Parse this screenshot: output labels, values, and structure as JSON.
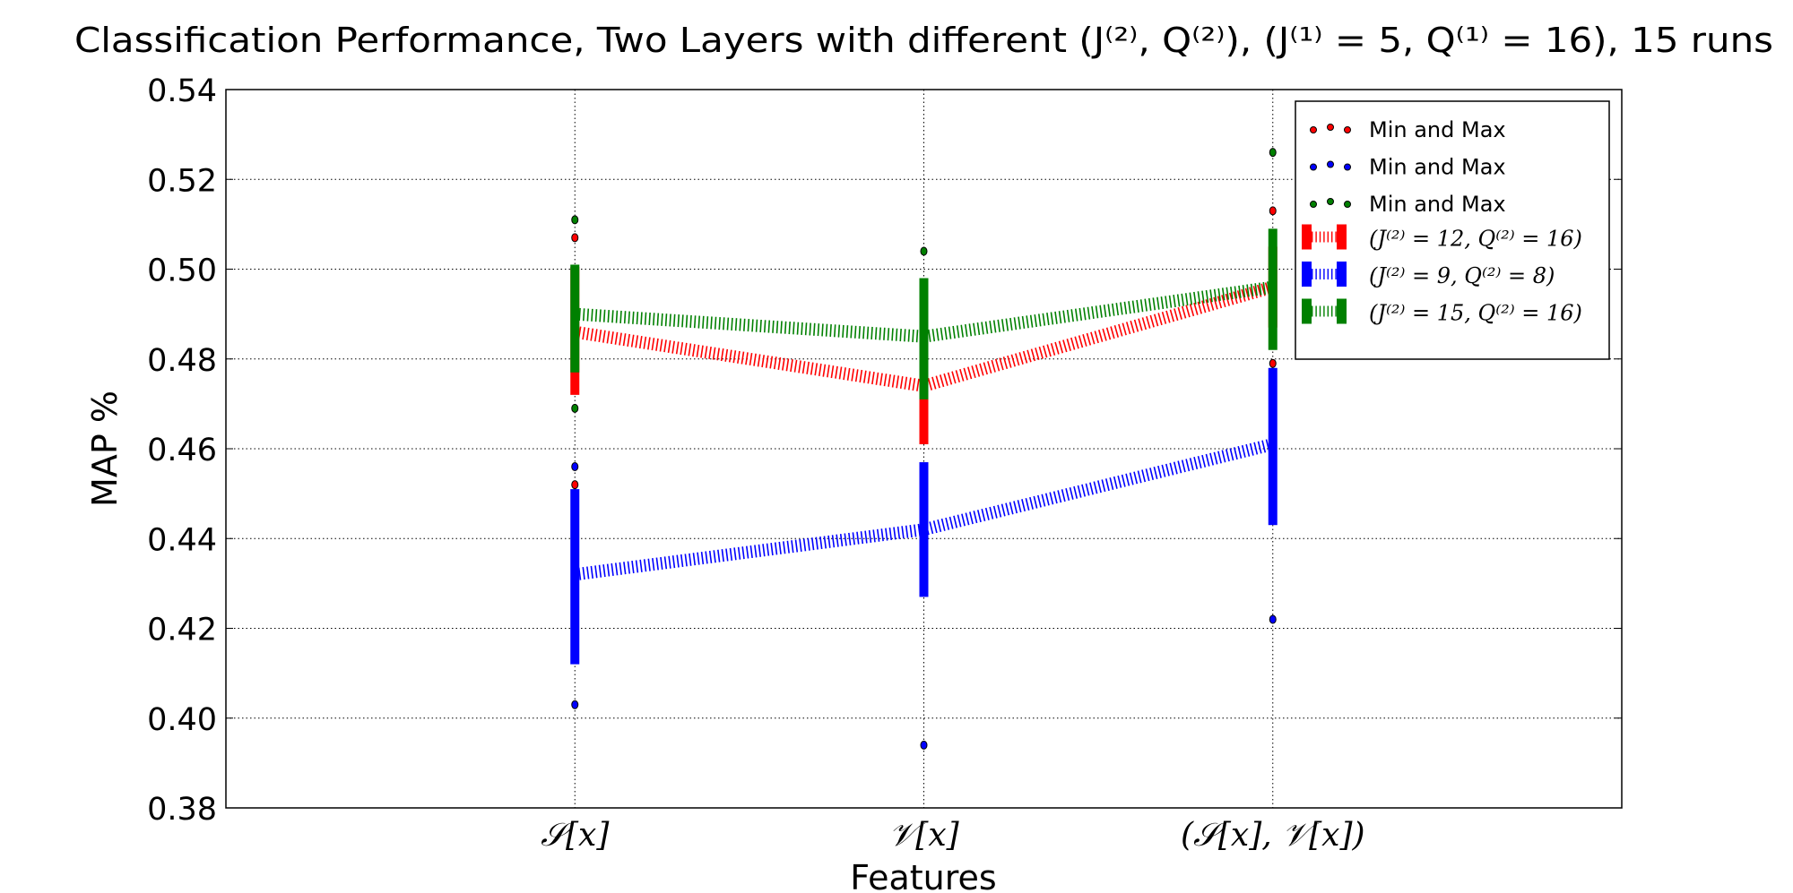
{
  "chart_data": {
    "type": "errorbar-line",
    "title": "Classification Performance, Two Layers with different (J⁽²⁾, Q⁽²⁾), (J⁽¹⁾ = 5, Q⁽¹⁾ = 16), 15 runs",
    "xlabel": "Features",
    "ylabel": "MAP %",
    "categories": [
      "𝒮[x]",
      "𝒱[x]",
      "(𝒮[x], 𝒱[x])"
    ],
    "xlim": [
      0,
      4
    ],
    "ylim": [
      0.38,
      0.54
    ],
    "yticks": [
      "0.38",
      "0.40",
      "0.42",
      "0.44",
      "0.46",
      "0.48",
      "0.50",
      "0.52",
      "0.54"
    ],
    "grid": true,
    "legend_placement": "top-right",
    "series": [
      {
        "name": "(J⁽²⁾ = 12, Q⁽²⁾ = 16)",
        "color": "#ff0000",
        "mean": [
          0.486,
          0.474,
          0.496
        ],
        "std_low": [
          0.472,
          0.461,
          0.487
        ],
        "std_high": [
          0.5005,
          0.488,
          0.505
        ],
        "min": [
          0.452,
          null,
          0.479
        ],
        "max": [
          0.507,
          null,
          0.513
        ]
      },
      {
        "name": "(J⁽²⁾ = 9, Q⁽²⁾ = 8)",
        "color": "#0000ff",
        "mean": [
          0.432,
          0.442,
          0.461
        ],
        "std_low": [
          0.412,
          0.427,
          0.443
        ],
        "std_high": [
          0.451,
          0.457,
          0.478
        ],
        "min": [
          0.403,
          0.394,
          0.422
        ],
        "max": [
          0.456,
          null,
          null
        ]
      },
      {
        "name": "(J⁽²⁾ = 15, Q⁽²⁾ = 16)",
        "color": "#008000",
        "mean": [
          0.49,
          0.485,
          0.496
        ],
        "std_low": [
          0.477,
          0.471,
          0.482
        ],
        "std_high": [
          0.501,
          0.498,
          0.509
        ],
        "min": [
          0.469,
          null,
          null
        ],
        "max": [
          0.511,
          0.504,
          0.526
        ]
      }
    ],
    "legend": [
      "Min and Max",
      "Min and Max",
      "Min and Max",
      "(J⁽²⁾ = 12, Q⁽²⁾ = 16)",
      "(J⁽²⁾ = 9, Q⁽²⁾ = 8)",
      "(J⁽²⁾ = 15, Q⁽²⁾ = 16)"
    ]
  }
}
